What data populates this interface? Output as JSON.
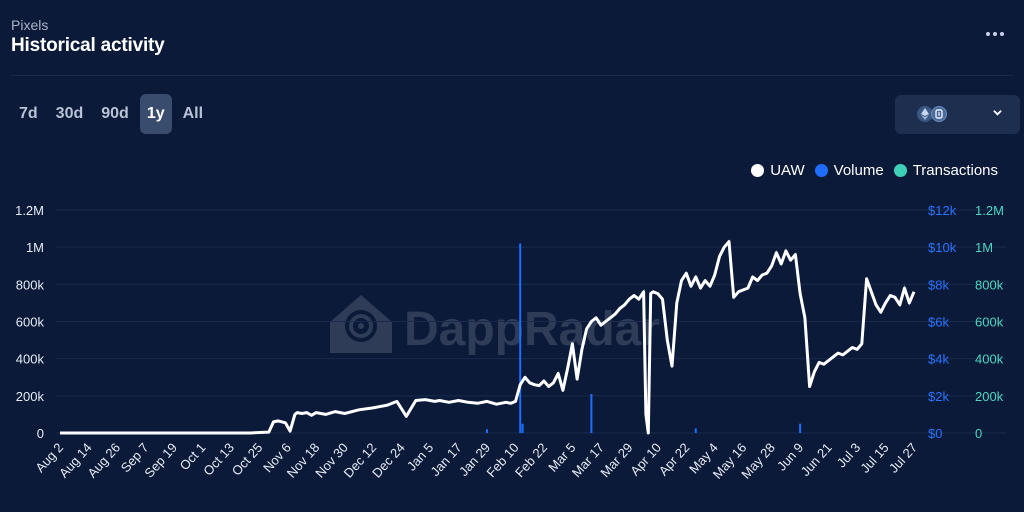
{
  "header": {
    "subtitle": "Pixels",
    "title": "Historical activity"
  },
  "range_tabs": [
    {
      "label": "7d",
      "active": false
    },
    {
      "label": "30d",
      "active": false
    },
    {
      "label": "90d",
      "active": false
    },
    {
      "label": "1y",
      "active": true
    },
    {
      "label": "All",
      "active": false
    }
  ],
  "chain_select": {
    "icons": [
      "ethereum-icon",
      "ronin-icon"
    ]
  },
  "watermark": "DappRadar",
  "colors": {
    "background": "#0b1a38",
    "uaw": "#ffffff",
    "volume": "#1f6dff",
    "transactions": "#3ed1b8",
    "grid": "#1a2a4c",
    "axis_text": "#e6ebf5",
    "volume_axis_text": "#2a73ff",
    "tx_axis_text": "#4fd6c0"
  },
  "chart_data": {
    "type": "line",
    "legend": [
      "UAW",
      "Volume",
      "Transactions"
    ],
    "legend_position": "top-right",
    "x_ticks": [
      "Aug 2",
      "Aug 14",
      "Aug 26",
      "Sep 7",
      "Sep 19",
      "Oct 1",
      "Oct 13",
      "Oct 25",
      "Nov 6",
      "Nov 18",
      "Nov 30",
      "Dec 12",
      "Dec 24",
      "Jan 5",
      "Jan 17",
      "Jan 29",
      "Feb 10",
      "Feb 22",
      "Mar 5",
      "Mar 17",
      "Mar 29",
      "Apr 10",
      "Apr 22",
      "May 4",
      "May 16",
      "May 28",
      "Jun 9",
      "Jun 21",
      "Jul 3",
      "Jul 15",
      "Jul 27"
    ],
    "y_left": {
      "ticks": [
        "0",
        "200k",
        "400k",
        "600k",
        "800k",
        "1M",
        "1.2M"
      ],
      "range": [
        0,
        1200000
      ]
    },
    "y_volume": {
      "ticks": [
        "$0",
        "$2k",
        "$4k",
        "$6k",
        "$8k",
        "$10k",
        "$12k"
      ],
      "range": [
        0,
        12000
      ]
    },
    "y_transactions": {
      "ticks": [
        "0",
        "200k",
        "400k",
        "600k",
        "800k",
        "1M",
        "1.2M"
      ],
      "range": [
        0,
        1200000
      ]
    },
    "grid": true,
    "series": [
      {
        "name": "UAW",
        "day_offsets": [
          0,
          20,
          40,
          60,
          80,
          88,
          90,
          92,
          95,
          97,
          99,
          100,
          102,
          104,
          106,
          108,
          112,
          116,
          120,
          126,
          132,
          138,
          142,
          146,
          150,
          154,
          158,
          160,
          164,
          168,
          170,
          172,
          176,
          180,
          184,
          188,
          190,
          192,
          194,
          196,
          198,
          200,
          202,
          204,
          206,
          208,
          210,
          212,
          214,
          216,
          218,
          220,
          222,
          224,
          226,
          228,
          230,
          232,
          234,
          236,
          238,
          240,
          242,
          244,
          246,
          247,
          248,
          249,
          250,
          252,
          254,
          256,
          258,
          260,
          262,
          264,
          266,
          268,
          270,
          272,
          274,
          276,
          278,
          280,
          282,
          284,
          286,
          288,
          290,
          292,
          294,
          296,
          298,
          300,
          302,
          304,
          306,
          308,
          310,
          312,
          314,
          316,
          318,
          320,
          322,
          324,
          326,
          328,
          330,
          332,
          334,
          336,
          338,
          340,
          342,
          344,
          346,
          348,
          350,
          352,
          354,
          356,
          358,
          360
        ],
        "values": [
          0,
          0,
          0,
          0,
          0,
          5000,
          60000,
          65000,
          55000,
          10000,
          100000,
          110000,
          105000,
          110000,
          95000,
          110000,
          100000,
          115000,
          105000,
          125000,
          135000,
          150000,
          170000,
          90000,
          175000,
          180000,
          170000,
          175000,
          165000,
          175000,
          170000,
          165000,
          160000,
          170000,
          155000,
          165000,
          160000,
          170000,
          260000,
          300000,
          270000,
          260000,
          255000,
          280000,
          250000,
          270000,
          320000,
          230000,
          350000,
          480000,
          290000,
          450000,
          560000,
          600000,
          620000,
          580000,
          600000,
          620000,
          640000,
          670000,
          690000,
          720000,
          740000,
          720000,
          760000,
          100000,
          0,
          750000,
          760000,
          750000,
          720000,
          500000,
          360000,
          700000,
          820000,
          860000,
          790000,
          840000,
          780000,
          820000,
          790000,
          850000,
          950000,
          1000000,
          1030000,
          730000,
          760000,
          770000,
          780000,
          840000,
          820000,
          850000,
          860000,
          900000,
          970000,
          910000,
          980000,
          930000,
          960000,
          750000,
          620000,
          250000,
          330000,
          380000,
          370000,
          390000,
          410000,
          430000,
          420000,
          440000,
          460000,
          450000,
          480000,
          830000,
          760000,
          690000,
          650000,
          700000,
          740000,
          730000,
          690000,
          780000,
          700000,
          760000
        ]
      },
      {
        "name": "Volume",
        "bars": [
          {
            "day": 180,
            "value": 200
          },
          {
            "day": 194,
            "value": 10200
          },
          {
            "day": 195,
            "value": 500
          },
          {
            "day": 224,
            "value": 2100
          },
          {
            "day": 248,
            "value": 150
          },
          {
            "day": 268,
            "value": 250
          },
          {
            "day": 312,
            "value": 500
          }
        ]
      }
    ]
  }
}
